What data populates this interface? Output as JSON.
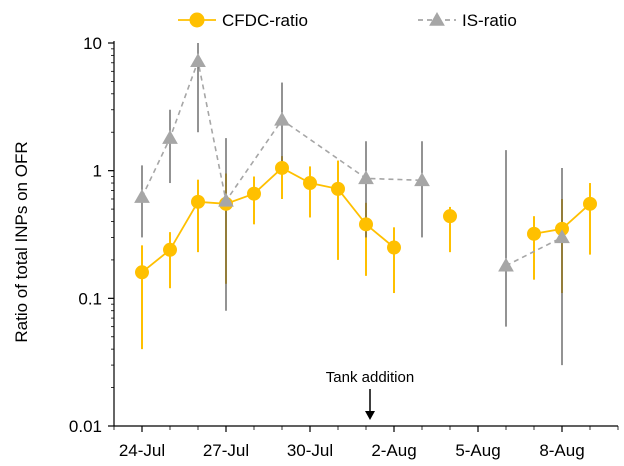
{
  "chart_data": {
    "type": "line",
    "yscale": "log",
    "ylim": [
      0.01,
      10
    ],
    "ylabel": "Ratio of total INPs on OFR",
    "xlabel": "",
    "yticks": [
      "0.01",
      "0.1",
      "1",
      "10"
    ],
    "xticks": [
      {
        "date": "2021-07-24",
        "label": "24-Jul"
      },
      {
        "date": "2021-07-27",
        "label": "27-Jul"
      },
      {
        "date": "2021-07-30",
        "label": "30-Jul"
      },
      {
        "date": "2021-08-02",
        "label": "2-Aug"
      },
      {
        "date": "2021-08-05",
        "label": "5-Aug"
      },
      {
        "date": "2021-08-08",
        "label": "8-Aug"
      }
    ],
    "xlim": [
      "2021-07-23",
      "2021-08-10"
    ],
    "legend": {
      "position": "top",
      "items": [
        {
          "name": "CFDC-ratio",
          "color": "#FFC000",
          "marker": "circle",
          "dash": "solid"
        },
        {
          "name": "IS-ratio",
          "color": "#A6A6A6",
          "marker": "triangle",
          "dash": "dashed"
        }
      ]
    },
    "annotations": [
      {
        "text": "Tank addition",
        "x": "2021-08-01",
        "arrow": "down"
      }
    ],
    "series": [
      {
        "name": "CFDC-ratio",
        "color": "#FFC000",
        "segments": [
          [
            {
              "x": "2021-07-24",
              "y": 0.16,
              "low": 0.04,
              "high": 0.26
            },
            {
              "x": "2021-07-25",
              "y": 0.24,
              "low": 0.12,
              "high": 0.33
            },
            {
              "x": "2021-07-26",
              "y": 0.57,
              "low": 0.23,
              "high": 0.85
            },
            {
              "x": "2021-07-27",
              "y": 0.55,
              "low": 0.13,
              "high": 0.95
            },
            {
              "x": "2021-07-28",
              "y": 0.66,
              "low": 0.38,
              "high": 0.9
            },
            {
              "x": "2021-07-29",
              "y": 1.05,
              "low": 0.6,
              "high": 1.3
            },
            {
              "x": "2021-07-30",
              "y": 0.8,
              "low": 0.43,
              "high": 1.08
            },
            {
              "x": "2021-07-31",
              "y": 0.72,
              "low": 0.2,
              "high": 1.2
            },
            {
              "x": "2021-08-01",
              "y": 0.38,
              "low": 0.15,
              "high": 0.56
            },
            {
              "x": "2021-08-02",
              "y": 0.25,
              "low": 0.11,
              "high": 0.36
            }
          ],
          [
            {
              "x": "2021-08-04",
              "y": 0.44,
              "low": 0.23,
              "high": 0.52
            }
          ],
          [
            {
              "x": "2021-08-07",
              "y": 0.32,
              "low": 0.14,
              "high": 0.44
            },
            {
              "x": "2021-08-08",
              "y": 0.35,
              "low": 0.11,
              "high": 0.6
            },
            {
              "x": "2021-08-09",
              "y": 0.55,
              "low": 0.22,
              "high": 0.8
            }
          ]
        ]
      },
      {
        "name": "IS-ratio",
        "color": "#A6A6A6",
        "segments": [
          [
            {
              "x": "2021-07-24",
              "y": 0.62,
              "low": 0.3,
              "high": 1.1
            },
            {
              "x": "2021-07-25",
              "y": 1.8,
              "low": 0.8,
              "high": 3.0
            },
            {
              "x": "2021-07-26",
              "y": 7.2,
              "low": 2.0,
              "high": 10.0
            },
            {
              "x": "2021-07-27",
              "y": 0.58,
              "low": 0.08,
              "high": 1.8
            },
            {
              "x": "2021-07-29",
              "y": 2.5,
              "low": 1.0,
              "high": 4.9
            },
            {
              "x": "2021-08-01",
              "y": 0.87,
              "low": 0.3,
              "high": 1.7
            },
            {
              "x": "2021-08-03",
              "y": 0.84,
              "low": 0.3,
              "high": 1.7
            }
          ],
          [
            {
              "x": "2021-08-06",
              "y": 0.18,
              "low": 0.06,
              "high": 1.45
            },
            {
              "x": "2021-08-08",
              "y": 0.3,
              "low": 0.03,
              "high": 1.05
            }
          ]
        ]
      }
    ]
  }
}
